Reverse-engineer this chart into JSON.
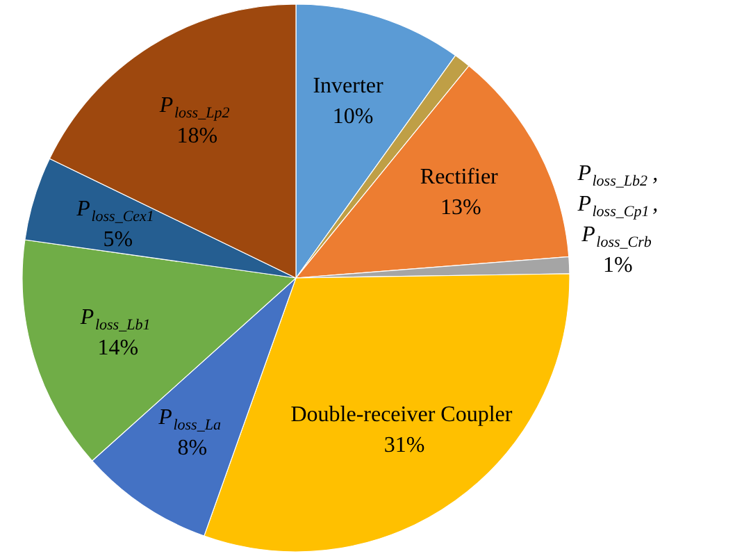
{
  "chart_data": {
    "type": "pie",
    "categories": [
      "Inverter",
      null,
      "Rectifier",
      "P$_{loss_Lb2}$, P$_{loss_Cp1}$, P$_{loss_Crb}$",
      "Double-receiver Coupler",
      "P$_{loss_La}$",
      "P$_{loss_Lb1}$",
      "P$_{loss_Cex1}$",
      "P$_{loss_Lp2}$"
    ],
    "values": [
      10,
      1,
      13,
      1,
      31,
      8,
      14,
      5,
      18
    ],
    "value_labels": [
      "10%",
      null,
      "13%",
      "1%",
      "31%",
      "8%",
      "14%",
      "5%",
      "18%"
    ],
    "colors": [
      "#5b9bd5",
      "#bf9f46",
      "#ed7d31",
      "#a5a5a5",
      "#ffc000",
      "#4472c4",
      "#70ad47",
      "#255e91",
      "#9e480e"
    ]
  }
}
